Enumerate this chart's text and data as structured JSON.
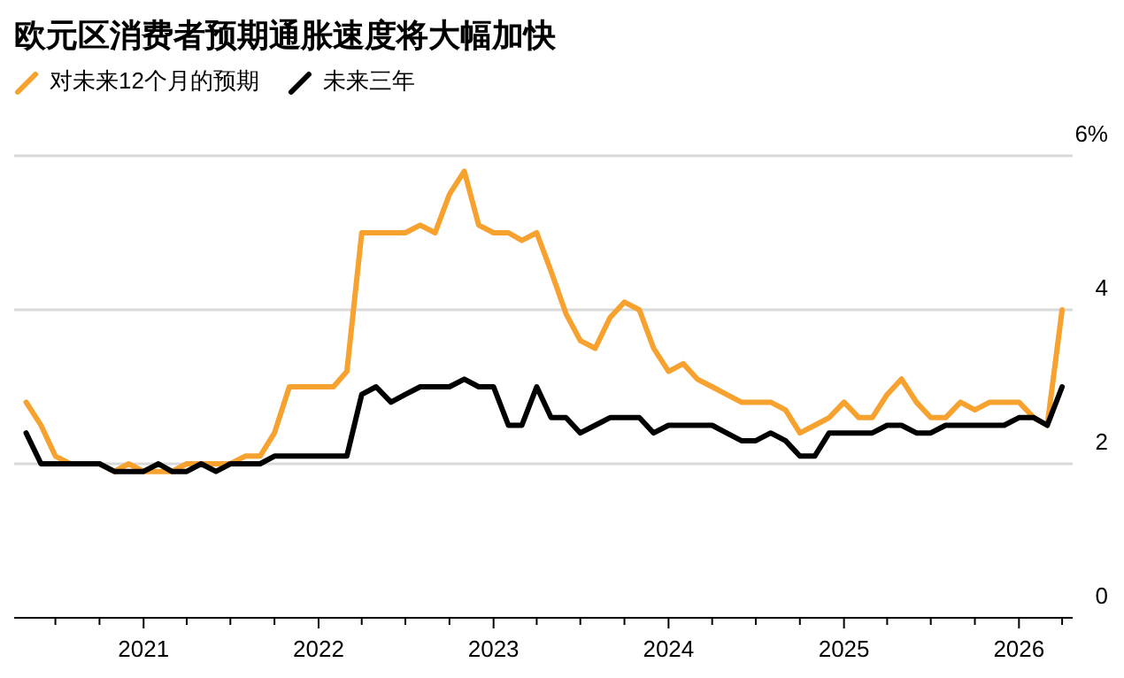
{
  "chart_data": {
    "type": "line",
    "title": "欧元区消费者预期通胀速度将大幅加快",
    "x": [
      "2020-05",
      "2020-06",
      "2020-07",
      "2020-08",
      "2020-09",
      "2020-10",
      "2020-11",
      "2020-12",
      "2021-01",
      "2021-02",
      "2021-03",
      "2021-04",
      "2021-05",
      "2021-06",
      "2021-07",
      "2021-08",
      "2021-09",
      "2021-10",
      "2021-11",
      "2021-12",
      "2022-01",
      "2022-02",
      "2022-03",
      "2022-04",
      "2022-05",
      "2022-06",
      "2022-07",
      "2022-08",
      "2022-09",
      "2022-10",
      "2022-11",
      "2022-12",
      "2023-01",
      "2023-02",
      "2023-03",
      "2023-04",
      "2023-05",
      "2023-06",
      "2023-07",
      "2023-08",
      "2023-09",
      "2023-10",
      "2023-11",
      "2023-12",
      "2024-01",
      "2024-02",
      "2024-03",
      "2024-04",
      "2024-05",
      "2024-06",
      "2024-07",
      "2024-08",
      "2024-09",
      "2024-10",
      "2024-11",
      "2024-12",
      "2025-01",
      "2025-02",
      "2025-03",
      "2025-04",
      "2025-05",
      "2025-06",
      "2025-07",
      "2025-08",
      "2025-09",
      "2025-10",
      "2025-11",
      "2025-12",
      "2026-01",
      "2026-02",
      "2026-03",
      "2026-04"
    ],
    "series": [
      {
        "name": "对未来12个月的预期",
        "color": "#f7a12f",
        "values": [
          2.8,
          2.5,
          2.1,
          2.0,
          2.0,
          2.0,
          1.9,
          2.0,
          1.9,
          1.9,
          1.9,
          2.0,
          2.0,
          2.0,
          2.0,
          2.1,
          2.1,
          2.4,
          3.0,
          3.0,
          3.0,
          3.0,
          3.2,
          5.0,
          5.0,
          5.0,
          5.0,
          5.1,
          5.0,
          5.5,
          5.8,
          5.1,
          5.0,
          5.0,
          4.9,
          5.0,
          4.5,
          3.95,
          3.6,
          3.5,
          3.9,
          4.1,
          4.0,
          3.5,
          3.2,
          3.3,
          3.1,
          3.0,
          2.9,
          2.8,
          2.8,
          2.8,
          2.7,
          2.4,
          2.5,
          2.6,
          2.8,
          2.6,
          2.6,
          2.9,
          3.1,
          2.8,
          2.6,
          2.6,
          2.8,
          2.7,
          2.8,
          2.8,
          2.8,
          2.6,
          2.5,
          4.0
        ]
      },
      {
        "name": "未来三年",
        "color": "#000000",
        "values": [
          2.4,
          2.0,
          2.0,
          2.0,
          2.0,
          2.0,
          1.9,
          1.9,
          1.9,
          2.0,
          1.9,
          1.9,
          2.0,
          1.9,
          2.0,
          2.0,
          2.0,
          2.1,
          2.1,
          2.1,
          2.1,
          2.1,
          2.1,
          2.9,
          3.0,
          2.8,
          2.9,
          3.0,
          3.0,
          3.0,
          3.1,
          3.0,
          3.0,
          2.5,
          2.5,
          3.0,
          2.6,
          2.6,
          2.4,
          2.5,
          2.6,
          2.6,
          2.6,
          2.4,
          2.5,
          2.5,
          2.5,
          2.5,
          2.4,
          2.3,
          2.3,
          2.4,
          2.3,
          2.1,
          2.1,
          2.4,
          2.4,
          2.4,
          2.4,
          2.5,
          2.5,
          2.4,
          2.4,
          2.5,
          2.5,
          2.5,
          2.5,
          2.5,
          2.6,
          2.6,
          2.5,
          3.0
        ]
      }
    ],
    "xlim": [
      "2020-04-06",
      "2026-04-23"
    ],
    "xticks": [
      {
        "value": "2020-07",
        "label": null
      },
      {
        "value": "2020-10",
        "label": null
      },
      {
        "value": "2021-01",
        "label": "2021"
      },
      {
        "value": "2021-04",
        "label": null
      },
      {
        "value": "2021-07",
        "label": null
      },
      {
        "value": "2021-10",
        "label": null
      },
      {
        "value": "2022-01",
        "label": "2022"
      },
      {
        "value": "2022-04",
        "label": null
      },
      {
        "value": "2022-07",
        "label": null
      },
      {
        "value": "2022-10",
        "label": null
      },
      {
        "value": "2023-01",
        "label": "2023"
      },
      {
        "value": "2023-04",
        "label": null
      },
      {
        "value": "2023-07",
        "label": null
      },
      {
        "value": "2023-10",
        "label": null
      },
      {
        "value": "2024-01",
        "label": "2024"
      },
      {
        "value": "2024-04",
        "label": null
      },
      {
        "value": "2024-07",
        "label": null
      },
      {
        "value": "2024-10",
        "label": null
      },
      {
        "value": "2025-01",
        "label": "2025"
      },
      {
        "value": "2025-04",
        "label": null
      },
      {
        "value": "2025-07",
        "label": null
      },
      {
        "value": "2025-10",
        "label": null
      },
      {
        "value": "2026-01",
        "label": "2026"
      },
      {
        "value": "2026-04",
        "label": null
      }
    ],
    "ylim": [
      0,
      6
    ],
    "yticks": [
      0,
      2,
      4,
      {
        "value": 6,
        "label": "6%"
      }
    ],
    "grid": "y",
    "legend": "top left",
    "marker": "none",
    "line_style": "solid"
  }
}
